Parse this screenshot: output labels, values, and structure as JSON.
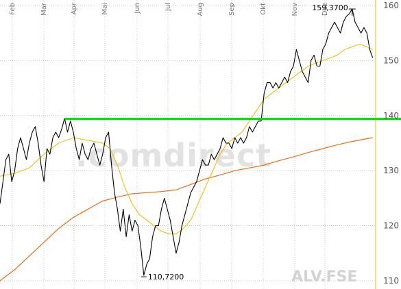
{
  "chart_data": {
    "type": "line",
    "symbol": "ALV.FSE",
    "watermark": ".comdirect",
    "months": [
      "Feb",
      "Mar",
      "Apr",
      "Mai",
      "Jun",
      "Jul",
      "Aug",
      "Sep",
      "Okt",
      "Nov",
      "Dez"
    ],
    "y_ticks": [
      "110",
      "120",
      "130",
      "140",
      "150",
      "160"
    ],
    "ylim": [
      108.5,
      161
    ],
    "xlim": [
      0,
      256
    ],
    "grid": true,
    "annotations": {
      "high_label": "159,3700",
      "low_label": "110,7200",
      "high": {
        "x": 240,
        "y": 159.37
      },
      "low": {
        "x": 98,
        "y": 110.72
      }
    },
    "resistance_level": 139.4,
    "resistance_x_start": 44,
    "colors": {
      "price": "#000000",
      "sma_short": "#f0c419",
      "sma_long": "#f06a14",
      "resistance": "#00e000",
      "grid": "#c8c8c8",
      "current_marker": "#f3e27a"
    },
    "series": [
      {
        "key": "price",
        "points": [
          [
            0,
            124
          ],
          [
            2,
            128
          ],
          [
            4,
            132
          ],
          [
            6,
            133
          ],
          [
            8,
            128
          ],
          [
            10,
            130
          ],
          [
            12,
            134
          ],
          [
            14,
            136
          ],
          [
            16,
            134
          ],
          [
            18,
            132
          ],
          [
            20,
            135
          ],
          [
            22,
            137
          ],
          [
            24,
            138
          ],
          [
            26,
            135
          ],
          [
            28,
            131
          ],
          [
            30,
            128
          ],
          [
            32,
            134
          ],
          [
            34,
            133
          ],
          [
            36,
            136
          ],
          [
            38,
            137
          ],
          [
            40,
            136
          ],
          [
            42,
            137.5
          ],
          [
            44,
            139.5
          ],
          [
            46,
            137
          ],
          [
            48,
            139
          ],
          [
            50,
            137
          ],
          [
            52,
            134
          ],
          [
            54,
            132
          ],
          [
            56,
            135
          ],
          [
            58,
            133
          ],
          [
            60,
            132
          ],
          [
            62,
            134
          ],
          [
            64,
            135
          ],
          [
            66,
            133
          ],
          [
            68,
            131
          ],
          [
            70,
            133
          ],
          [
            72,
            136
          ],
          [
            74,
            137
          ],
          [
            76,
            131
          ],
          [
            78,
            126
          ],
          [
            80,
            123
          ],
          [
            82,
            119
          ],
          [
            84,
            123
          ],
          [
            86,
            118
          ],
          [
            88,
            122
          ],
          [
            90,
            119
          ],
          [
            92,
            121
          ],
          [
            94,
            120
          ],
          [
            96,
            116
          ],
          [
            98,
            111
          ],
          [
            100,
            113
          ],
          [
            102,
            114
          ],
          [
            104,
            118
          ],
          [
            106,
            120
          ],
          [
            108,
            120
          ],
          [
            110,
            123
          ],
          [
            112,
            125
          ],
          [
            114,
            123
          ],
          [
            116,
            121
          ],
          [
            118,
            118
          ],
          [
            120,
            115
          ],
          [
            122,
            117
          ],
          [
            124,
            120
          ],
          [
            126,
            122
          ],
          [
            128,
            124
          ],
          [
            130,
            126
          ],
          [
            132,
            127
          ],
          [
            134,
            128
          ],
          [
            136,
            130
          ],
          [
            138,
            132
          ],
          [
            140,
            131
          ],
          [
            142,
            131
          ],
          [
            144,
            133
          ],
          [
            146,
            132
          ],
          [
            148,
            133
          ],
          [
            150,
            134
          ],
          [
            152,
            136
          ],
          [
            154,
            135
          ],
          [
            156,
            135
          ],
          [
            158,
            134
          ],
          [
            160,
            136
          ],
          [
            162,
            135
          ],
          [
            164,
            136
          ],
          [
            166,
            135
          ],
          [
            168,
            136
          ],
          [
            170,
            138
          ],
          [
            172,
            137
          ],
          [
            174,
            138
          ],
          [
            176,
            139
          ],
          [
            178,
            139
          ],
          [
            180,
            144
          ],
          [
            182,
            146
          ],
          [
            184,
            146
          ],
          [
            186,
            145
          ],
          [
            188,
            146
          ],
          [
            190,
            145
          ],
          [
            192,
            146
          ],
          [
            194,
            147
          ],
          [
            196,
            146
          ],
          [
            198,
            148
          ],
          [
            200,
            149
          ],
          [
            202,
            152
          ],
          [
            204,
            150
          ],
          [
            206,
            148
          ],
          [
            208,
            147
          ],
          [
            210,
            146
          ],
          [
            212,
            150
          ],
          [
            214,
            151
          ],
          [
            216,
            149
          ],
          [
            218,
            149
          ],
          [
            220,
            152
          ],
          [
            222,
            153
          ],
          [
            224,
            155
          ],
          [
            226,
            156
          ],
          [
            228,
            157
          ],
          [
            230,
            156
          ],
          [
            232,
            155
          ],
          [
            234,
            157
          ],
          [
            236,
            158
          ],
          [
            238,
            158.5
          ],
          [
            240,
            159.37
          ],
          [
            242,
            157
          ],
          [
            244,
            156
          ],
          [
            246,
            155
          ],
          [
            248,
            156
          ],
          [
            250,
            155
          ],
          [
            252,
            152
          ],
          [
            254,
            150.5
          ]
        ]
      },
      {
        "key": "sma_short",
        "points": [
          [
            0,
            129
          ],
          [
            10,
            129.5
          ],
          [
            20,
            130.5
          ],
          [
            30,
            133
          ],
          [
            40,
            135
          ],
          [
            50,
            136
          ],
          [
            60,
            135.5
          ],
          [
            70,
            135
          ],
          [
            75,
            134
          ],
          [
            80,
            131
          ],
          [
            85,
            127
          ],
          [
            90,
            124
          ],
          [
            95,
            122
          ],
          [
            100,
            121
          ],
          [
            105,
            120
          ],
          [
            110,
            119
          ],
          [
            115,
            118.5
          ],
          [
            120,
            118.5
          ],
          [
            125,
            119.5
          ],
          [
            130,
            121
          ],
          [
            135,
            124
          ],
          [
            140,
            127
          ],
          [
            145,
            130
          ],
          [
            150,
            133
          ],
          [
            155,
            135
          ],
          [
            160,
            136
          ],
          [
            165,
            137
          ],
          [
            170,
            139
          ],
          [
            175,
            141
          ],
          [
            180,
            143
          ],
          [
            185,
            144
          ],
          [
            190,
            145
          ],
          [
            195,
            146
          ],
          [
            200,
            147
          ],
          [
            205,
            148
          ],
          [
            210,
            149
          ],
          [
            215,
            149.5
          ],
          [
            220,
            150
          ],
          [
            225,
            150.5
          ],
          [
            230,
            151
          ],
          [
            235,
            152
          ],
          [
            240,
            152.5
          ],
          [
            245,
            153
          ],
          [
            250,
            152.5
          ],
          [
            254,
            152
          ]
        ]
      },
      {
        "key": "sma_long",
        "points": [
          [
            0,
            110
          ],
          [
            10,
            112
          ],
          [
            20,
            114.5
          ],
          [
            30,
            117
          ],
          [
            40,
            119.5
          ],
          [
            50,
            121.5
          ],
          [
            60,
            123
          ],
          [
            70,
            124.5
          ],
          [
            80,
            125.2
          ],
          [
            90,
            125.8
          ],
          [
            100,
            126
          ],
          [
            110,
            126.2
          ],
          [
            120,
            126.5
          ],
          [
            130,
            127.5
          ],
          [
            140,
            128.5
          ],
          [
            150,
            129.2
          ],
          [
            160,
            130
          ],
          [
            170,
            130.5
          ],
          [
            180,
            131
          ],
          [
            190,
            131.8
          ],
          [
            200,
            132.5
          ],
          [
            210,
            133.3
          ],
          [
            220,
            134
          ],
          [
            230,
            134.7
          ],
          [
            240,
            135.3
          ],
          [
            254,
            136
          ]
        ]
      }
    ]
  }
}
